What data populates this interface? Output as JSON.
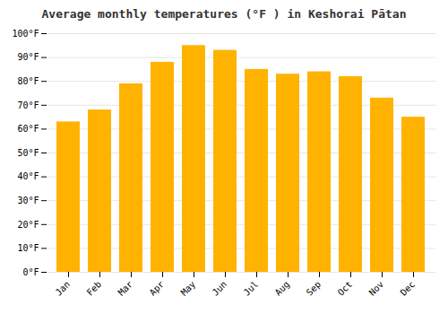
{
  "chart_data": {
    "type": "bar",
    "title": "Average monthly temperatures (°F ) in Keshorai Pātan",
    "categories": [
      "Jan",
      "Feb",
      "Mar",
      "Apr",
      "May",
      "Jun",
      "Jul",
      "Aug",
      "Sep",
      "Oct",
      "Nov",
      "Dec"
    ],
    "values": [
      63,
      68,
      79,
      88,
      95,
      93,
      85,
      83,
      84,
      82,
      73,
      65
    ],
    "color": "#FFB300",
    "ylim": [
      0,
      100
    ],
    "yticks": [
      {
        "value": 0,
        "label": "0°F"
      },
      {
        "value": 10,
        "label": "10°F"
      },
      {
        "value": 20,
        "label": "20°F"
      },
      {
        "value": 30,
        "label": "30°F"
      },
      {
        "value": 40,
        "label": "40°F"
      },
      {
        "value": 50,
        "label": "50°F"
      },
      {
        "value": 60,
        "label": "60°F"
      },
      {
        "value": 70,
        "label": "70°F"
      },
      {
        "value": 80,
        "label": "80°F"
      },
      {
        "value": 90,
        "label": "90°F"
      },
      {
        "value": 100,
        "label": "100°F"
      }
    ],
    "grid": true
  }
}
